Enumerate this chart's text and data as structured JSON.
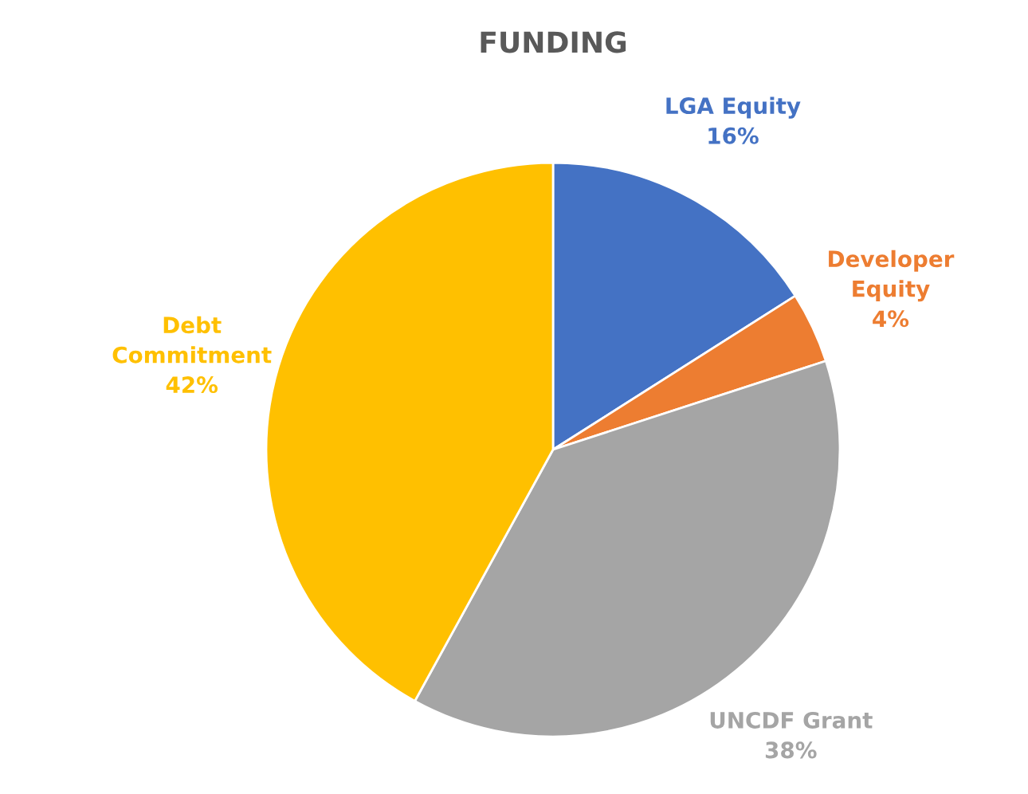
{
  "chart_data": {
    "type": "pie",
    "title": "FUNDING",
    "categories": [
      "LGA Equity",
      "Developer Equity",
      "UNCDF Grant",
      "Debt Commitment"
    ],
    "values": [
      16,
      4,
      38,
      42
    ],
    "colors": [
      "#4472c4",
      "#ed7d31",
      "#a5a5a5",
      "#ffc000"
    ],
    "value_labels": [
      "16%",
      "4%",
      "38%",
      "42%"
    ]
  }
}
